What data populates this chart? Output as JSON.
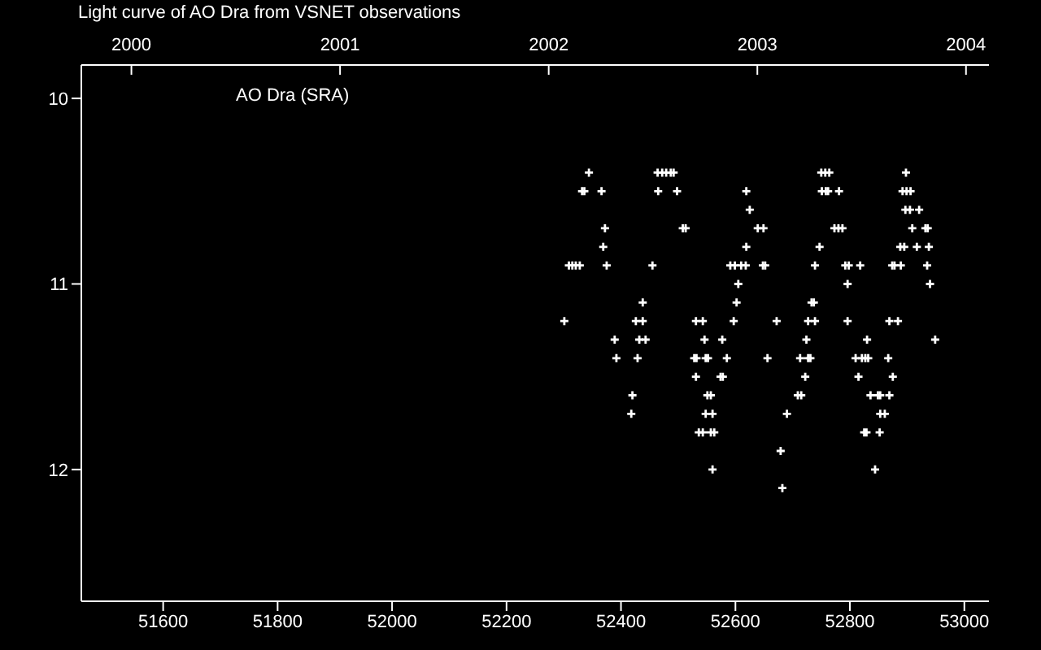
{
  "chart_data": {
    "type": "scatter",
    "title": "Light curve of AO Dra from VSNET observations",
    "annotations": [
      "AO Dra (SRA)"
    ],
    "series": [
      {
        "color": "#ffffff",
        "x": [
          52344,
          52464,
          52472,
          52479,
          52487,
          52492,
          52750,
          52757,
          52764,
          52898,
          52332,
          52336,
          52366,
          52465,
          52498,
          52619,
          52751,
          52758,
          52762,
          52781,
          52892,
          52899,
          52906,
          52625,
          52897,
          52905,
          52921,
          52372,
          52508,
          52513,
          52639,
          52649,
          52773,
          52780,
          52787,
          52909,
          52932,
          52936,
          52369,
          52619,
          52747,
          52888,
          52895,
          52917,
          52938,
          52309,
          52315,
          52321,
          52328,
          52375,
          52455,
          52591,
          52599,
          52610,
          52618,
          52648,
          52652,
          52739,
          52792,
          52798,
          52818,
          52874,
          52878,
          52889,
          52935,
          52605,
          52796,
          52940,
          52438,
          52602,
          52733,
          52737,
          52301,
          52426,
          52438,
          52531,
          52543,
          52597,
          52672,
          52727,
          52739,
          52796,
          52869,
          52884,
          52389,
          52432,
          52443,
          52546,
          52577,
          52724,
          52830,
          52949,
          52392,
          52429,
          52528,
          52532,
          52548,
          52552,
          52585,
          52656,
          52713,
          52727,
          52731,
          52810,
          52821,
          52827,
          52832,
          52867,
          52531,
          52574,
          52578,
          52722,
          52815,
          52875,
          52420,
          52551,
          52557,
          52709,
          52715,
          52836,
          52849,
          52853,
          52869,
          52418,
          52548,
          52560,
          52690,
          52853,
          52861,
          52536,
          52543,
          52557,
          52563,
          52825,
          52829,
          52852,
          52679,
          52560,
          52844,
          52682
        ],
        "values": [
          10.4,
          10.4,
          10.4,
          10.4,
          10.4,
          10.4,
          10.4,
          10.4,
          10.4,
          10.4,
          10.5,
          10.5,
          10.5,
          10.5,
          10.5,
          10.5,
          10.5,
          10.5,
          10.5,
          10.5,
          10.5,
          10.5,
          10.5,
          10.6,
          10.6,
          10.6,
          10.6,
          10.7,
          10.7,
          10.7,
          10.7,
          10.7,
          10.7,
          10.7,
          10.7,
          10.7,
          10.7,
          10.7,
          10.8,
          10.8,
          10.8,
          10.8,
          10.8,
          10.8,
          10.8,
          10.9,
          10.9,
          10.9,
          10.9,
          10.9,
          10.9,
          10.9,
          10.9,
          10.9,
          10.9,
          10.9,
          10.9,
          10.9,
          10.9,
          10.9,
          10.9,
          10.9,
          10.9,
          10.9,
          10.9,
          11.0,
          11.0,
          11.0,
          11.1,
          11.1,
          11.1,
          11.1,
          11.2,
          11.2,
          11.2,
          11.2,
          11.2,
          11.2,
          11.2,
          11.2,
          11.2,
          11.2,
          11.2,
          11.2,
          11.3,
          11.3,
          11.3,
          11.3,
          11.3,
          11.3,
          11.3,
          11.3,
          11.4,
          11.4,
          11.4,
          11.4,
          11.4,
          11.4,
          11.4,
          11.4,
          11.4,
          11.4,
          11.4,
          11.4,
          11.4,
          11.4,
          11.4,
          11.4,
          11.5,
          11.5,
          11.5,
          11.5,
          11.5,
          11.5,
          11.6,
          11.6,
          11.6,
          11.6,
          11.6,
          11.6,
          11.6,
          11.6,
          11.6,
          11.7,
          11.7,
          11.7,
          11.7,
          11.7,
          11.7,
          11.8,
          11.8,
          11.8,
          11.8,
          11.8,
          11.8,
          11.8,
          11.9,
          12.0,
          12.0,
          12.1
        ]
      }
    ],
    "xlim": [
      51457,
      53043
    ],
    "xticks": [
      51600,
      51800,
      52000,
      52200,
      52400,
      52600,
      52800,
      53000
    ],
    "x2lim": [
      1999.76,
      2004.11
    ],
    "x2ticks": [
      2000,
      2001,
      2002,
      2003,
      2004
    ],
    "ylim": [
      12.71,
      9.82
    ],
    "yticks": [
      10,
      11,
      12
    ],
    "marker": "cross",
    "grid": false
  }
}
